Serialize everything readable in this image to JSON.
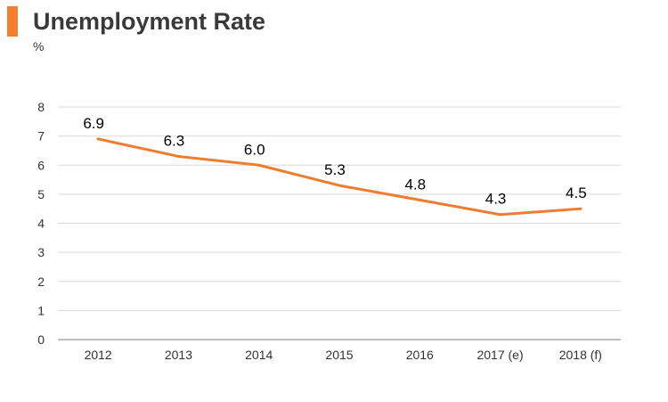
{
  "header": {
    "title": "Unemployment Rate",
    "unit": "%"
  },
  "colors": {
    "accent": "#F08030",
    "line": "#EE7D31",
    "grid": "#D9D9D9",
    "axis": "#7F7F7F",
    "text": "#000000"
  },
  "chart_data": {
    "type": "line",
    "title": "Unemployment Rate",
    "ylabel": "%",
    "xlabel": "",
    "categories": [
      "2012",
      "2013",
      "2014",
      "2015",
      "2016",
      "2017 (e)",
      "2018 (f)"
    ],
    "series": [
      {
        "values": [
          6.9,
          6.3,
          6.0,
          5.3,
          4.8,
          4.3,
          4.5
        ],
        "labels": [
          "6.9",
          "6.3",
          "6.0",
          "5.3",
          "4.8",
          "4.3",
          "4.5"
        ]
      }
    ],
    "ylim": [
      0,
      8
    ],
    "yticks": [
      "0",
      "1",
      "2",
      "3",
      "4",
      "5",
      "6",
      "7",
      "8"
    ],
    "grid": true,
    "legend": "none"
  }
}
